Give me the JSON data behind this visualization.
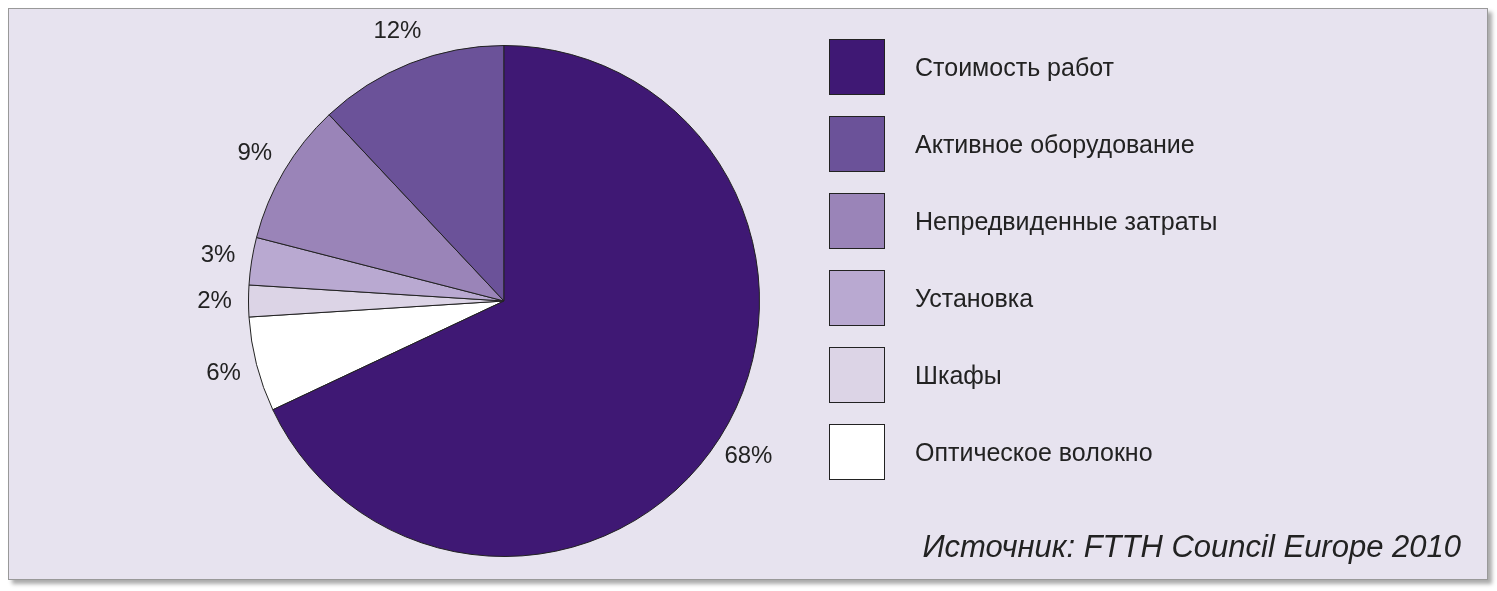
{
  "chart_data": {
    "type": "pie",
    "categories": [
      "Стоимость работ",
      "Активное оборудование",
      "Непредвиденные затраты",
      "Установка",
      "Шкафы",
      "Оптическое волокно"
    ],
    "values": [
      68,
      12,
      9,
      3,
      2,
      6
    ],
    "value_labels": [
      "68%",
      "12%",
      "9%",
      "3%",
      "2%",
      "6%"
    ],
    "colors": [
      "#3f1874",
      "#6b5299",
      "#9a84b8",
      "#b9a9d1",
      "#dcd4e6",
      "#ffffff"
    ],
    "legend": "right",
    "annotations": [
      "Источник: FTTH Council Europe 2010"
    ]
  }
}
